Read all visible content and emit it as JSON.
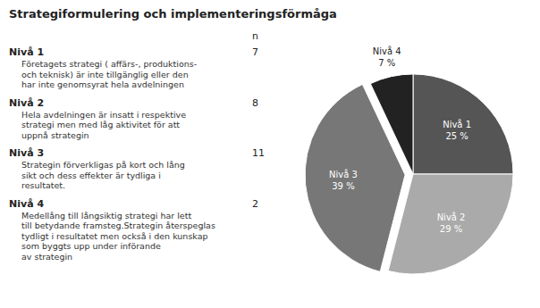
{
  "chart_data": {
    "type": "pie",
    "title": "Strategiformulering och implementeringsförmåga",
    "categories": [
      "Nivå 1",
      "Nivå 2",
      "Nivå 3",
      "Nivå 4"
    ],
    "values": [
      25,
      29,
      39,
      7
    ],
    "value_labels": [
      "25 %",
      "29 %",
      "39 %",
      "7 %"
    ],
    "data_labels": true,
    "colors": [
      "#555555",
      "#aaaaaa",
      "#777777",
      "#222222"
    ],
    "n_label": "n",
    "counts": [
      7,
      8,
      11,
      2
    ],
    "descriptions": [
      "Företagets strategi ( affärs-, produktions-\noch teknisk) är inte tillgänglig eller den\nhar inte genomsyrat hela avdelningen",
      "Hela avdelningen är insatt i respektive\nstrategi men med låg aktivitet för att\nuppnå strategin",
      "Strategin förverkligas på kort och lång\nsikt och dess effekter är tydliga i\nresultatet.",
      "Medellång till långsiktig strategi har lett\ntill betydande framsteg.Strategin återspeglas\ntydligt i resultatet men också i den kunskap\nsom byggts upp under införande\nav strategin"
    ]
  }
}
